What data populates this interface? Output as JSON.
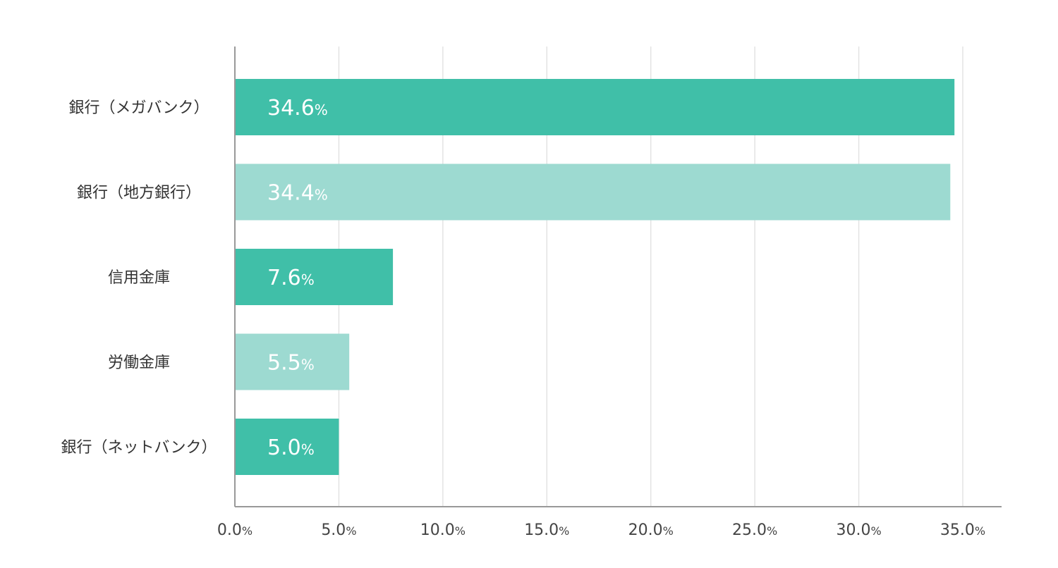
{
  "chart_data": {
    "type": "bar",
    "orientation": "horizontal",
    "categories": [
      "銀行（メガバンク）",
      "銀行（地方銀行）",
      "信用金庫",
      "労働金庫",
      "銀行（ネットバンク）"
    ],
    "values": [
      34.6,
      34.4,
      7.6,
      5.5,
      5.0
    ],
    "value_labels": [
      "34.6",
      "34.4",
      "7.6",
      "5.5",
      "5.0"
    ],
    "value_unit": "%",
    "xlim": [
      0,
      37
    ],
    "x_ticks": [
      0,
      5,
      10,
      15,
      20,
      25,
      30,
      35
    ],
    "x_tick_labels": [
      "0.0",
      "5.0",
      "10.0",
      "15.0",
      "20.0",
      "25.0",
      "30.0",
      "35.0"
    ],
    "tick_unit": "%",
    "bar_colors": [
      "#40bfa8",
      "#9ddad1",
      "#40bfa8",
      "#9ddad1",
      "#40bfa8"
    ],
    "grid": true,
    "legend": "none",
    "title": "",
    "xlabel": "",
    "ylabel": ""
  }
}
